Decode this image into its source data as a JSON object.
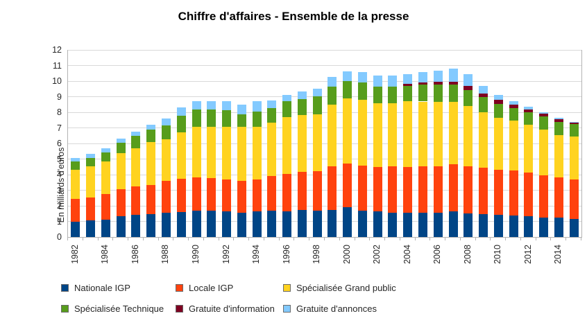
{
  "chart_data": {
    "type": "bar",
    "stacked": true,
    "title": "Chiffre d'affaires - Ensemble de la presse",
    "xlabel": "",
    "ylabel": "En milliards d'euros",
    "ylim": [
      0,
      12
    ],
    "ytick_step": 1,
    "grid": true,
    "legend_position": "bottom",
    "x_label_every": 2,
    "categories": [
      1982,
      1983,
      1984,
      1985,
      1986,
      1987,
      1988,
      1989,
      1990,
      1991,
      1992,
      1993,
      1994,
      1995,
      1996,
      1997,
      1998,
      1999,
      2000,
      2001,
      2002,
      2003,
      2004,
      2005,
      2006,
      2007,
      2008,
      2009,
      2010,
      2011,
      2012,
      2013,
      2014,
      2015
    ],
    "series": [
      {
        "name": "Nationale IGP",
        "color": "#004586",
        "values": [
          1.0,
          1.05,
          1.1,
          1.33,
          1.41,
          1.48,
          1.55,
          1.6,
          1.7,
          1.67,
          1.64,
          1.57,
          1.63,
          1.7,
          1.63,
          1.74,
          1.7,
          1.74,
          1.89,
          1.71,
          1.63,
          1.55,
          1.57,
          1.55,
          1.55,
          1.64,
          1.52,
          1.45,
          1.41,
          1.38,
          1.35,
          1.26,
          1.23,
          1.16
        ]
      },
      {
        "name": "Locale IGP",
        "color": "#FF420E",
        "values": [
          1.45,
          1.5,
          1.65,
          1.74,
          1.85,
          1.87,
          2.06,
          2.13,
          2.11,
          2.09,
          2.06,
          2.04,
          2.06,
          2.2,
          2.42,
          2.45,
          2.52,
          2.81,
          2.84,
          2.87,
          2.86,
          2.97,
          2.91,
          2.97,
          3.0,
          3.01,
          3.03,
          2.98,
          2.92,
          2.88,
          2.79,
          2.71,
          2.59,
          2.54
        ]
      },
      {
        "name": "Spécialisée Grand public",
        "color": "#FFD320",
        "values": [
          1.85,
          2.0,
          2.1,
          2.3,
          2.42,
          2.72,
          2.66,
          2.98,
          3.24,
          3.29,
          3.38,
          3.44,
          3.39,
          3.45,
          3.66,
          3.64,
          3.64,
          3.96,
          4.18,
          4.23,
          4.1,
          4.07,
          4.21,
          4.17,
          4.11,
          4.0,
          3.85,
          3.55,
          3.3,
          3.19,
          3.06,
          2.93,
          2.73,
          2.75
        ]
      },
      {
        "name": "Spécialisée Technique",
        "color": "#579D1C",
        "values": [
          0.55,
          0.5,
          0.58,
          0.66,
          0.79,
          0.81,
          0.9,
          1.07,
          1.13,
          1.13,
          1.07,
          0.83,
          0.97,
          0.91,
          0.98,
          1.01,
          1.17,
          1.15,
          1.1,
          1.09,
          1.07,
          1.07,
          1.02,
          1.07,
          1.11,
          1.12,
          1.02,
          0.98,
          0.9,
          0.8,
          0.8,
          0.82,
          0.85,
          0.8
        ]
      },
      {
        "name": "Gratuite d'information",
        "color": "#7E0021",
        "values": [
          0,
          0,
          0,
          0,
          0,
          0,
          0,
          0,
          0,
          0,
          0,
          0,
          0,
          0,
          0,
          0,
          0,
          0,
          0,
          0,
          0,
          0,
          0.12,
          0.14,
          0.18,
          0.2,
          0.27,
          0.23,
          0.27,
          0.25,
          0.2,
          0.18,
          0.15,
          0.1
        ]
      },
      {
        "name": "Gratuite d'annonces",
        "color": "#83CAFF",
        "values": [
          0.22,
          0.27,
          0.24,
          0.29,
          0.3,
          0.33,
          0.42,
          0.51,
          0.55,
          0.55,
          0.58,
          0.63,
          0.64,
          0.51,
          0.4,
          0.48,
          0.48,
          0.6,
          0.63,
          0.66,
          0.68,
          0.68,
          0.62,
          0.66,
          0.73,
          0.83,
          0.76,
          0.48,
          0.3,
          0.22,
          0.15,
          0.1,
          0.08,
          0.05
        ]
      }
    ]
  },
  "style_colors": {
    "grid": "#d9d9d9",
    "axis": "#b3b3b3",
    "text": "#262626",
    "background": "#ffffff"
  }
}
